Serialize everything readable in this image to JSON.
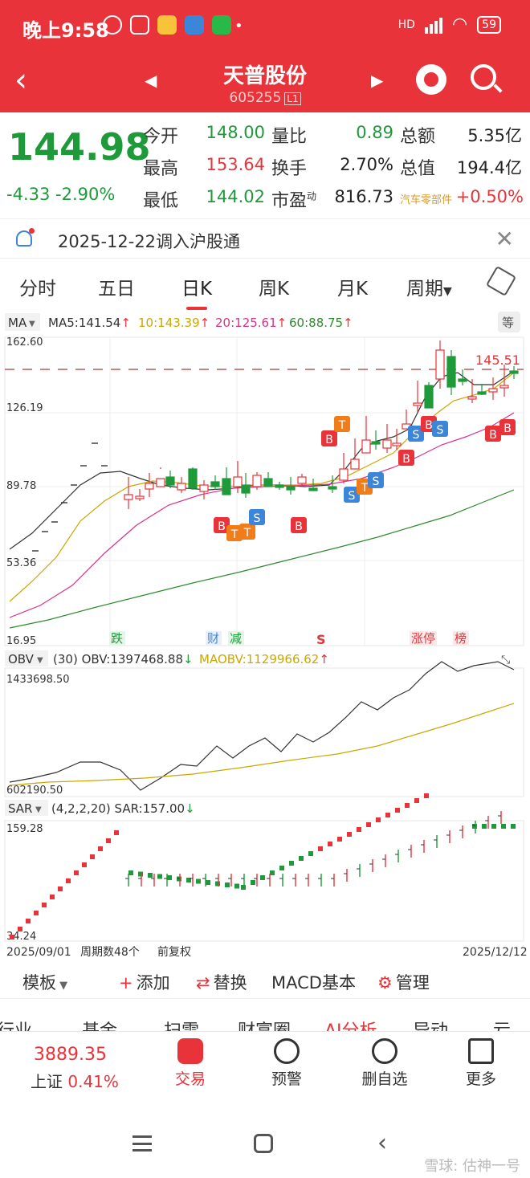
{
  "status_bar": {
    "time": "晚上9:58",
    "network": "HD",
    "battery": "59"
  },
  "header": {
    "title": "天普股份",
    "code": "605255",
    "code_tag": "L1"
  },
  "quote": {
    "price": "144.98",
    "change": "-4.33",
    "change_pct": "-2.90%",
    "fields": [
      {
        "label": "今开",
        "value": "148.00",
        "color": "green"
      },
      {
        "label": "最高",
        "value": "153.64",
        "color": "red"
      },
      {
        "label": "最低",
        "value": "144.02",
        "color": "green"
      },
      {
        "label": "量比",
        "value": "0.89",
        "color": "green"
      },
      {
        "label": "换手",
        "value": "2.70%",
        "color": "dark"
      },
      {
        "label": "市盈",
        "label_sup": "动",
        "value": "816.73",
        "color": "dark"
      },
      {
        "label": "总额",
        "value": "5.35亿",
        "color": "dark"
      },
      {
        "label": "总值",
        "value": "194.4亿",
        "color": "dark"
      },
      {
        "label": "汽车零部件",
        "value": "+0.50%",
        "color": "red"
      }
    ]
  },
  "notice": {
    "text": "2025-12-22调入沪股通"
  },
  "period_tabs": [
    "分时",
    "五日",
    "日K",
    "周K",
    "月K",
    "周期"
  ],
  "period_active": "日K",
  "chart_data": [
    {
      "type": "candlestick",
      "title": "",
      "indicator": "MA",
      "legend": [
        {
          "name": "MA5",
          "value": "141.54",
          "color": "#333333"
        },
        {
          "name": "10",
          "value": "143.39",
          "color": "#c9a800"
        },
        {
          "name": "20",
          "value": "125.61",
          "color": "#d6328d"
        },
        {
          "name": "60",
          "value": "88.75",
          "color": "#2e8b2e"
        }
      ],
      "y_ticks": [
        "162.60",
        "126.19",
        "89.78",
        "53.36",
        "16.95"
      ],
      "ylim": [
        16.95,
        162.6
      ],
      "reference_price": "145.51",
      "grid": true
    },
    {
      "type": "line",
      "indicator": "OBV",
      "params": "(30)",
      "legend": [
        {
          "name": "OBV",
          "value": "1397468.88",
          "color": "#333333"
        },
        {
          "name": "MAOBV",
          "value": "1129966.62",
          "color": "#c9a800"
        }
      ],
      "y_ticks": [
        "1433698.50",
        "602190.50"
      ],
      "ylim": [
        602190.5,
        1433698.5
      ]
    },
    {
      "type": "scatter",
      "indicator": "SAR",
      "params": "(4,2,2,20)",
      "legend": [
        {
          "name": "SAR",
          "value": "157.00",
          "color": "#333333"
        }
      ],
      "y_ticks": [
        "159.28",
        "34.24"
      ],
      "ylim": [
        34.24,
        159.28
      ]
    }
  ],
  "chart_footer": {
    "start": "2025/09/01",
    "count": "周期数48个",
    "adjust": "前复权",
    "end": "2025/12/12"
  },
  "event_marks": [
    "跌",
    "财",
    "减",
    "S",
    "涨停",
    "榜"
  ],
  "signal_badges": [
    "B",
    "T",
    "S"
  ],
  "toolbar": {
    "template": "模板",
    "add": "添加",
    "replace": "替换",
    "indicator": "MACD基本",
    "manage": "管理"
  },
  "sub_tabs": [
    "行业",
    "基金",
    "扫雷",
    "财富圈",
    "AI分析",
    "异动",
    "亏"
  ],
  "bottom": {
    "index_value": "3889.35",
    "index_name": "上证",
    "index_pct": "0.41%",
    "items": [
      "交易",
      "预警",
      "删自选",
      "更多"
    ]
  },
  "watermark": "雪球: 估神一号"
}
